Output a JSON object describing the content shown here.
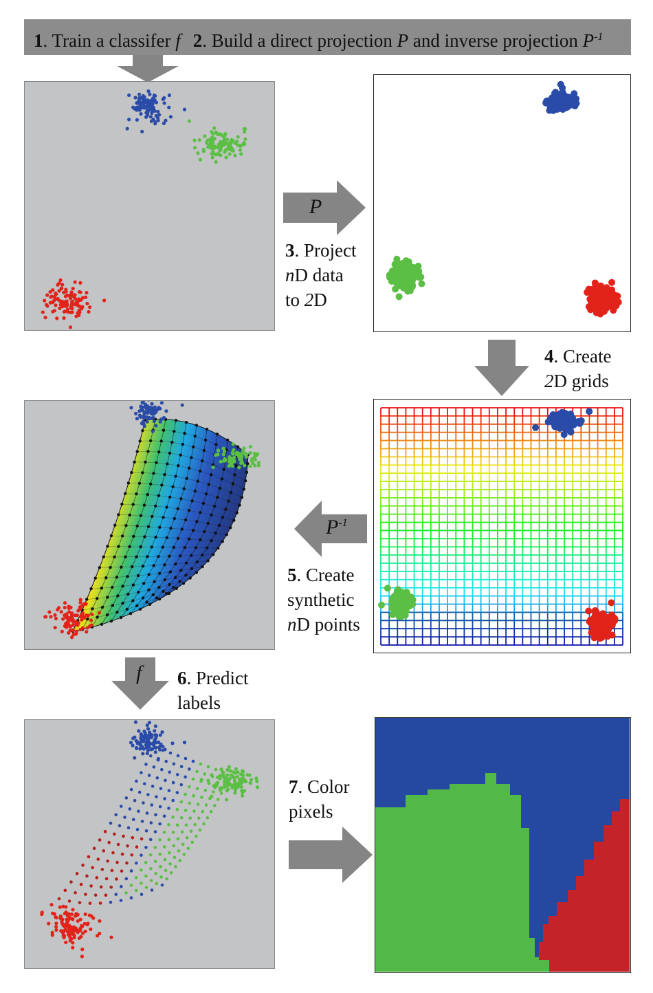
{
  "header": {
    "step1_num": "1",
    "step1_text": ". Train a classifer ",
    "step1_var": "f",
    "step2_num": "2",
    "step2_text": ". Build a direct projection ",
    "step2_var": "P",
    "step2_text2": " and inverse projection ",
    "step2_var2": "P",
    "step2_sup": "-1"
  },
  "arrows": {
    "project_symbol": "P",
    "inverse_symbol": "P",
    "inverse_sup": "-1",
    "predict_symbol": "f"
  },
  "steps": {
    "s3": {
      "num": "3",
      "line1": ". Project",
      "line2_var": "n",
      "line2": "D data",
      "line3_pre": "to ",
      "line3_var": "2",
      "line3": "D"
    },
    "s4": {
      "num": "4",
      "line1": ". Create",
      "line2_var": "2",
      "line2": "D grids"
    },
    "s5": {
      "num": "5",
      "line1": ". Create",
      "line2": "synthetic",
      "line3_var": "n",
      "line3": "D points"
    },
    "s6": {
      "num": "6",
      "line1": ". Predict",
      "line2": "labels"
    },
    "s7": {
      "num": "7",
      "line1": ". Color",
      "line2": "pixels"
    }
  },
  "colors": {
    "blue": "#2a4ba8",
    "green": "#5cbf45",
    "red": "#e2231a",
    "panel_gray": "#c2c4c5",
    "arrow_gray": "#858585",
    "map_blue": "#2548a0",
    "map_green": "#52b847",
    "map_red": "#c4232a"
  }
}
